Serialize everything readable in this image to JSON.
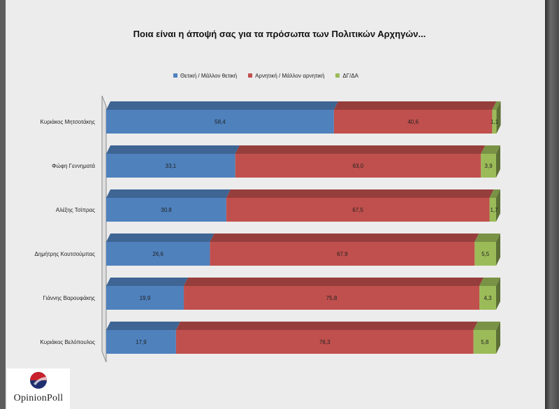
{
  "chart_data": {
    "type": "bar",
    "orientation": "horizontal",
    "stacked": true,
    "title": "Ποια είναι η άποψή σας για τα πρόσωπα των Πολιτικών Αρχηγών...",
    "legend_position": "top",
    "categories": [
      "Κυριάκος Μητσοτάκης",
      "Φώφη Γεννηματά",
      "Αλέξης Τσίπρας",
      "Δημήτρης Κουτσούμπας",
      "Γιάννης Βαρουφάκης",
      "Κυριάκος Βελόπουλος"
    ],
    "series": [
      {
        "name": "Θετική / Μάλλον θετική",
        "color": "#4f81bd",
        "values": [
          58.4,
          33.1,
          30.8,
          26.6,
          19.9,
          17.9
        ],
        "labels": [
          "58,4",
          "33,1",
          "30,8",
          "26,6",
          "19,9",
          "17,9"
        ]
      },
      {
        "name": "Αρνητική / Μάλλον αρνητική",
        "color": "#c0504d",
        "values": [
          40.6,
          63.0,
          67.5,
          67.9,
          75.8,
          76.3
        ],
        "labels": [
          "40,6",
          "63,0",
          "67,5",
          "67,9",
          "75,8",
          "76,3"
        ]
      },
      {
        "name": "ΔΓ/ΔΑ",
        "color": "#9bbb59",
        "values": [
          1.1,
          3.9,
          1.7,
          5.5,
          4.3,
          5.8
        ],
        "labels": [
          "1,1",
          "3,9",
          "1,7",
          "5,5",
          "4,3",
          "5,8"
        ]
      }
    ],
    "xlim": [
      0,
      100
    ],
    "grid": false
  },
  "logo": {
    "text": "OpinionPoll",
    "name": "opinionpoll-logo"
  }
}
